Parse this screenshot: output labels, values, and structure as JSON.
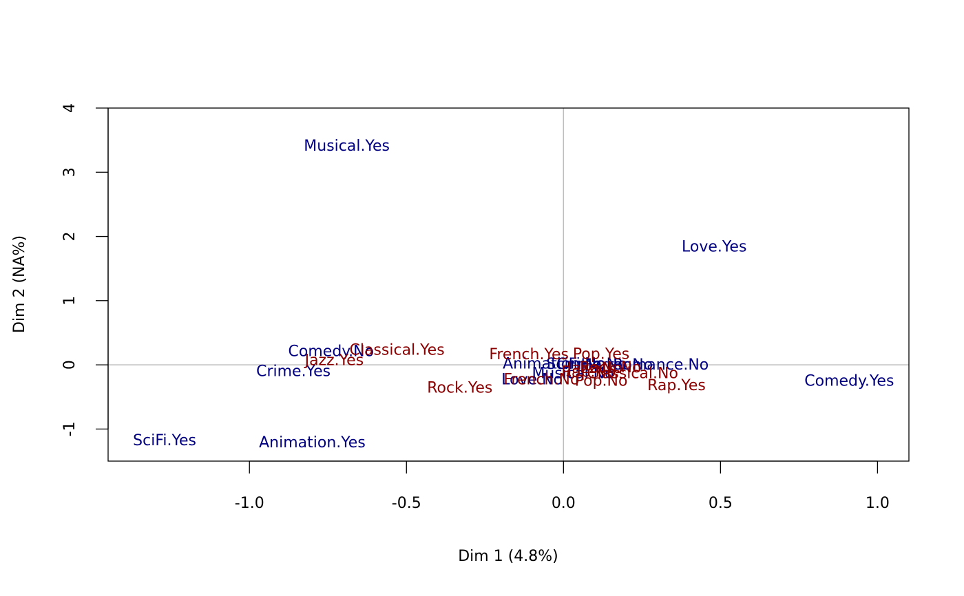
{
  "chart_data": {
    "type": "scatter",
    "title": "",
    "xlabel": "Dim 1 (4.8%)",
    "ylabel": "Dim 2 (NA%)",
    "xlim": [
      -1.45,
      1.1
    ],
    "ylim": [
      -1.5,
      4.0
    ],
    "x_ticks": [
      "-1.0",
      "-0.5",
      "0.0",
      "0.5",
      "1.0"
    ],
    "y_ticks": [
      "-1",
      "0",
      "1",
      "2",
      "3",
      "4"
    ],
    "reference_lines": {
      "x": 0,
      "y": 0,
      "color": "#bebebe"
    },
    "grid": false,
    "legend": "none",
    "series": [
      {
        "color": "#000080",
        "points": [
          {
            "label": "Musical.Yes",
            "x": -0.69,
            "y": 3.42
          },
          {
            "label": "Love.Yes",
            "x": 0.48,
            "y": 1.85
          },
          {
            "label": "Comedy.No",
            "x": -0.74,
            "y": 0.22
          },
          {
            "label": "Crime.Yes",
            "x": -0.86,
            "y": -0.09
          },
          {
            "label": "Comedy.Yes",
            "x": 0.91,
            "y": -0.24
          },
          {
            "label": "SciFi.Yes",
            "x": -1.27,
            "y": -1.17
          },
          {
            "label": "Animation.Yes",
            "x": -0.8,
            "y": -1.2
          },
          {
            "label": "Animation.No",
            "x": -0.03,
            "y": 0.03
          },
          {
            "label": "SciFi.No",
            "x": 0.04,
            "y": 0.02
          },
          {
            "label": "Crime.No",
            "x": 0.09,
            "y": 0.02
          },
          {
            "label": "Horror.No",
            "x": 0.17,
            "y": 0.01
          },
          {
            "label": "Romance.No",
            "x": 0.31,
            "y": 0.01
          },
          {
            "label": "Musical.No",
            "x": 0.03,
            "y": -0.12
          },
          {
            "label": "Love.No",
            "x": -0.1,
            "y": -0.22
          }
        ]
      },
      {
        "color": "#8b0000",
        "points": [
          {
            "label": "Classical.Yes",
            "x": -0.53,
            "y": 0.24
          },
          {
            "label": "Jazz.Yes",
            "x": -0.73,
            "y": 0.08
          },
          {
            "label": "French.Yes",
            "x": -0.11,
            "y": 0.17
          },
          {
            "label": "Pop.Yes",
            "x": 0.12,
            "y": 0.18
          },
          {
            "label": "Rock.Yes",
            "x": -0.33,
            "y": -0.35
          },
          {
            "label": "Rap.Yes",
            "x": 0.36,
            "y": -0.31
          },
          {
            "label": "Rock.No",
            "x": 0.15,
            "y": -0.03
          },
          {
            "label": "Jazz.No",
            "x": 0.1,
            "y": -0.04
          },
          {
            "label": "Classical.No",
            "x": 0.22,
            "y": -0.12
          },
          {
            "label": "French.No",
            "x": -0.07,
            "y": -0.22
          },
          {
            "label": "Pop.No",
            "x": 0.12,
            "y": -0.24
          },
          {
            "label": "Rap.No",
            "x": 0.08,
            "y": -0.1
          }
        ]
      }
    ]
  }
}
